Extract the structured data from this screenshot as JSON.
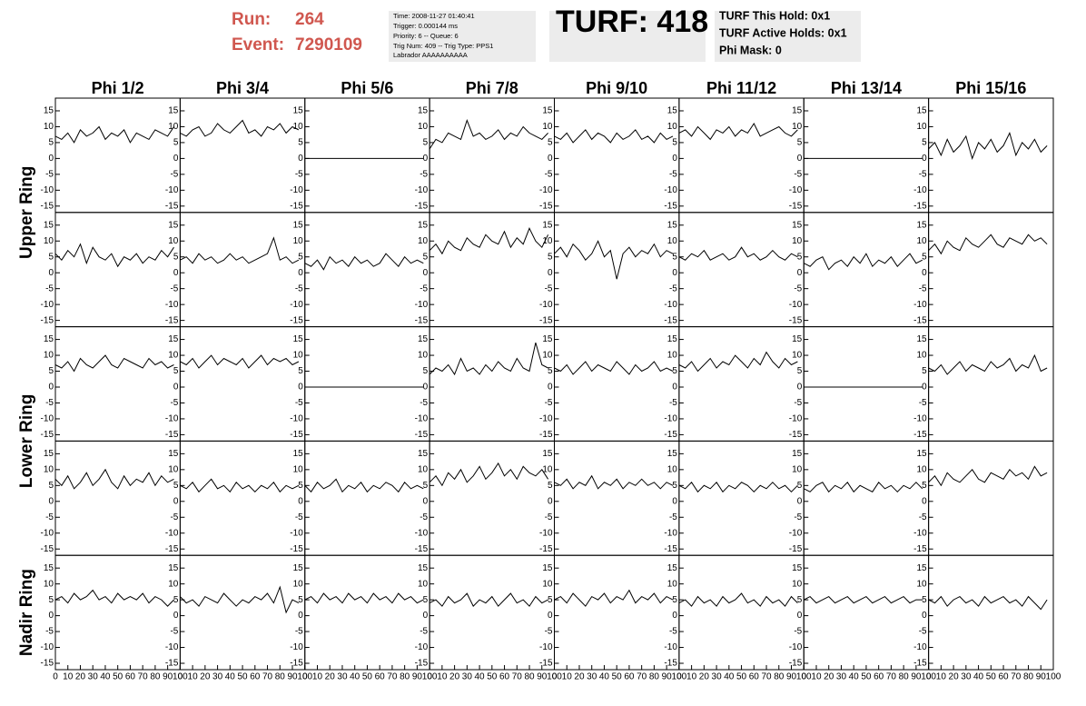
{
  "header": {
    "run_label": "Run:",
    "run": "264",
    "event_label": "Event:",
    "event": "7290109",
    "info": [
      "Time: 2008-11-27 01:40:41",
      "Trigger: 0.000144 ms",
      "Priority: 6 -- Queue: 6",
      "Trig Num: 409 -- Trig Type: PPS1",
      "Labrador AAAAAAAAAA"
    ],
    "turf": "TURF: 418",
    "turf_info": [
      "TURF This Hold: 0x1",
      "TURF Active Holds: 0x1",
      "Phi Mask: 0"
    ]
  },
  "chart_data": {
    "type": "line",
    "color": "#000000",
    "columns": [
      "Phi 1/2",
      "Phi 3/4",
      "Phi 5/6",
      "Phi 7/8",
      "Phi 9/10",
      "Phi 11/12",
      "Phi 13/14",
      "Phi 15/16"
    ],
    "row_labels": [
      "Upper Ring",
      "Lower Ring",
      "Nadir Ring"
    ],
    "xlim": [
      0,
      100
    ],
    "ylim": [
      -17,
      19
    ],
    "xticks": [
      0,
      10,
      20,
      30,
      40,
      50,
      60,
      70,
      80,
      90,
      100
    ],
    "yticks": [
      -15,
      -10,
      -5,
      0,
      5,
      10,
      15
    ],
    "x": [
      0,
      5,
      10,
      15,
      20,
      25,
      30,
      35,
      40,
      45,
      50,
      55,
      60,
      65,
      70,
      75,
      80,
      85,
      90,
      95
    ],
    "series": [
      {
        "values": [
          7,
          6,
          8,
          5,
          9,
          7,
          8,
          10,
          6,
          8,
          7,
          9,
          5,
          8,
          7,
          6,
          9,
          8,
          7,
          10
        ]
      },
      {
        "values": [
          8,
          7,
          9,
          10,
          7,
          8,
          11,
          9,
          8,
          10,
          12,
          8,
          9,
          7,
          10,
          9,
          11,
          8,
          10,
          9
        ]
      },
      {
        "values": [
          0,
          0,
          0,
          0,
          0,
          0,
          0,
          0,
          0,
          0,
          0,
          0,
          0,
          0,
          0,
          0,
          0,
          0,
          0,
          0
        ]
      },
      {
        "values": [
          3,
          6,
          5,
          8,
          7,
          6,
          12,
          7,
          8,
          6,
          7,
          9,
          6,
          8,
          7,
          10,
          8,
          7,
          6,
          8
        ]
      },
      {
        "values": [
          7,
          6,
          8,
          5,
          7,
          9,
          6,
          8,
          7,
          5,
          8,
          6,
          7,
          9,
          6,
          7,
          5,
          8,
          6,
          7
        ]
      },
      {
        "values": [
          8,
          9,
          7,
          10,
          8,
          6,
          9,
          8,
          10,
          7,
          9,
          8,
          11,
          7,
          8,
          9,
          10,
          8,
          7,
          9
        ]
      },
      {
        "values": [
          0,
          0,
          0,
          0,
          0,
          0,
          0,
          0,
          0,
          0,
          0,
          0,
          0,
          0,
          0,
          0,
          0,
          0,
          0,
          0
        ]
      },
      {
        "values": [
          3,
          5,
          1,
          6,
          2,
          4,
          7,
          0,
          5,
          3,
          6,
          2,
          4,
          8,
          1,
          5,
          3,
          6,
          2,
          4
        ]
      },
      {
        "values": [
          6,
          4,
          7,
          5,
          9,
          3,
          8,
          5,
          4,
          6,
          2,
          5,
          4,
          6,
          3,
          5,
          4,
          7,
          5,
          8
        ]
      },
      {
        "values": [
          4,
          5,
          3,
          6,
          4,
          5,
          3,
          4,
          6,
          4,
          5,
          3,
          4,
          5,
          6,
          11,
          4,
          5,
          3,
          4
        ]
      },
      {
        "values": [
          3,
          2,
          4,
          1,
          5,
          3,
          4,
          2,
          5,
          3,
          4,
          2,
          3,
          6,
          4,
          2,
          5,
          3,
          4,
          3
        ]
      },
      {
        "values": [
          7,
          9,
          6,
          10,
          8,
          7,
          11,
          9,
          8,
          12,
          10,
          9,
          13,
          8,
          11,
          9,
          14,
          10,
          8,
          12
        ]
      },
      {
        "values": [
          6,
          8,
          5,
          9,
          7,
          4,
          6,
          10,
          5,
          7,
          -2,
          6,
          8,
          5,
          7,
          6,
          9,
          5,
          7,
          6
        ]
      },
      {
        "values": [
          5,
          4,
          6,
          5,
          7,
          4,
          5,
          6,
          4,
          5,
          8,
          5,
          6,
          4,
          5,
          7,
          5,
          4,
          6,
          5
        ]
      },
      {
        "values": [
          3,
          2,
          4,
          5,
          1,
          3,
          4,
          2,
          5,
          3,
          6,
          2,
          4,
          3,
          5,
          2,
          4,
          6,
          3,
          4
        ]
      },
      {
        "values": [
          7,
          9,
          6,
          10,
          8,
          7,
          11,
          9,
          8,
          10,
          12,
          9,
          8,
          11,
          10,
          9,
          12,
          10,
          11,
          9
        ]
      },
      {
        "values": [
          7,
          6,
          8,
          5,
          9,
          7,
          6,
          8,
          10,
          7,
          6,
          9,
          8,
          7,
          6,
          9,
          7,
          8,
          6,
          7
        ]
      },
      {
        "values": [
          8,
          7,
          9,
          6,
          8,
          10,
          7,
          9,
          8,
          7,
          9,
          6,
          8,
          10,
          7,
          9,
          8,
          9,
          7,
          8
        ]
      },
      {
        "values": [
          0,
          0,
          0,
          0,
          0,
          0,
          0,
          0,
          0,
          0,
          0,
          0,
          0,
          0,
          0,
          0,
          0,
          0,
          0,
          0
        ]
      },
      {
        "values": [
          4,
          6,
          5,
          7,
          4,
          9,
          5,
          6,
          4,
          7,
          5,
          8,
          6,
          5,
          9,
          6,
          5,
          14,
          7,
          6
        ]
      },
      {
        "values": [
          6,
          5,
          7,
          4,
          6,
          8,
          5,
          7,
          6,
          5,
          8,
          6,
          4,
          7,
          5,
          6,
          8,
          5,
          6,
          5
        ]
      },
      {
        "values": [
          7,
          6,
          8,
          5,
          7,
          9,
          6,
          8,
          7,
          10,
          8,
          6,
          9,
          7,
          11,
          8,
          6,
          9,
          7,
          8
        ]
      },
      {
        "values": [
          0,
          0,
          0,
          0,
          0,
          0,
          0,
          0,
          0,
          0,
          0,
          0,
          0,
          0,
          0,
          0,
          0,
          0,
          0,
          0
        ]
      },
      {
        "values": [
          6,
          5,
          7,
          4,
          6,
          8,
          5,
          7,
          6,
          5,
          8,
          6,
          7,
          9,
          5,
          7,
          6,
          10,
          5,
          6
        ]
      },
      {
        "values": [
          7,
          5,
          8,
          4,
          6,
          9,
          5,
          7,
          10,
          6,
          4,
          8,
          5,
          7,
          6,
          9,
          5,
          8,
          6,
          7
        ]
      },
      {
        "values": [
          5,
          4,
          6,
          3,
          5,
          7,
          4,
          5,
          3,
          6,
          4,
          5,
          3,
          5,
          4,
          6,
          3,
          5,
          4,
          5
        ]
      },
      {
        "values": [
          5,
          3,
          6,
          4,
          5,
          7,
          3,
          5,
          4,
          6,
          3,
          5,
          4,
          6,
          5,
          3,
          6,
          4,
          5,
          4
        ]
      },
      {
        "values": [
          6,
          8,
          5,
          9,
          7,
          10,
          6,
          8,
          11,
          7,
          9,
          12,
          8,
          10,
          7,
          11,
          9,
          8,
          10,
          7
        ]
      },
      {
        "values": [
          6,
          5,
          7,
          4,
          6,
          5,
          8,
          4,
          6,
          5,
          7,
          4,
          6,
          5,
          7,
          5,
          6,
          4,
          6,
          5
        ]
      },
      {
        "values": [
          5,
          4,
          6,
          3,
          5,
          4,
          6,
          3,
          5,
          4,
          6,
          5,
          3,
          5,
          4,
          6,
          4,
          5,
          3,
          5
        ]
      },
      {
        "values": [
          4,
          3,
          5,
          6,
          3,
          5,
          4,
          6,
          3,
          5,
          4,
          3,
          6,
          4,
          5,
          3,
          5,
          4,
          6,
          4
        ]
      },
      {
        "values": [
          6,
          8,
          5,
          9,
          7,
          6,
          8,
          10,
          7,
          6,
          9,
          8,
          7,
          10,
          8,
          9,
          7,
          11,
          8,
          9
        ]
      },
      {
        "values": [
          5,
          6,
          4,
          7,
          5,
          6,
          8,
          5,
          6,
          4,
          7,
          5,
          6,
          5,
          7,
          4,
          6,
          5,
          3,
          5
        ]
      },
      {
        "values": [
          6,
          4,
          5,
          3,
          6,
          5,
          4,
          7,
          5,
          3,
          5,
          4,
          6,
          5,
          7,
          4,
          9,
          1,
          5,
          4
        ]
      },
      {
        "values": [
          5,
          6,
          4,
          7,
          5,
          6,
          4,
          7,
          5,
          6,
          4,
          7,
          5,
          6,
          4,
          7,
          5,
          6,
          4,
          5
        ]
      },
      {
        "values": [
          4,
          5,
          3,
          6,
          4,
          5,
          7,
          3,
          5,
          4,
          6,
          3,
          5,
          7,
          4,
          5,
          3,
          6,
          4,
          5
        ]
      },
      {
        "values": [
          5,
          6,
          4,
          7,
          5,
          3,
          6,
          5,
          7,
          4,
          6,
          5,
          8,
          4,
          6,
          5,
          7,
          4,
          6,
          5
        ]
      },
      {
        "values": [
          4,
          5,
          3,
          6,
          4,
          5,
          3,
          6,
          4,
          5,
          7,
          4,
          5,
          3,
          6,
          4,
          5,
          3,
          6,
          4
        ]
      },
      {
        "values": [
          5,
          6,
          4,
          5,
          6,
          4,
          5,
          6,
          4,
          5,
          6,
          4,
          5,
          6,
          4,
          5,
          6,
          4,
          5,
          5
        ]
      },
      {
        "values": [
          5,
          4,
          6,
          3,
          5,
          6,
          4,
          5,
          3,
          6,
          4,
          5,
          6,
          4,
          5,
          3,
          6,
          4,
          2,
          5
        ]
      }
    ]
  }
}
